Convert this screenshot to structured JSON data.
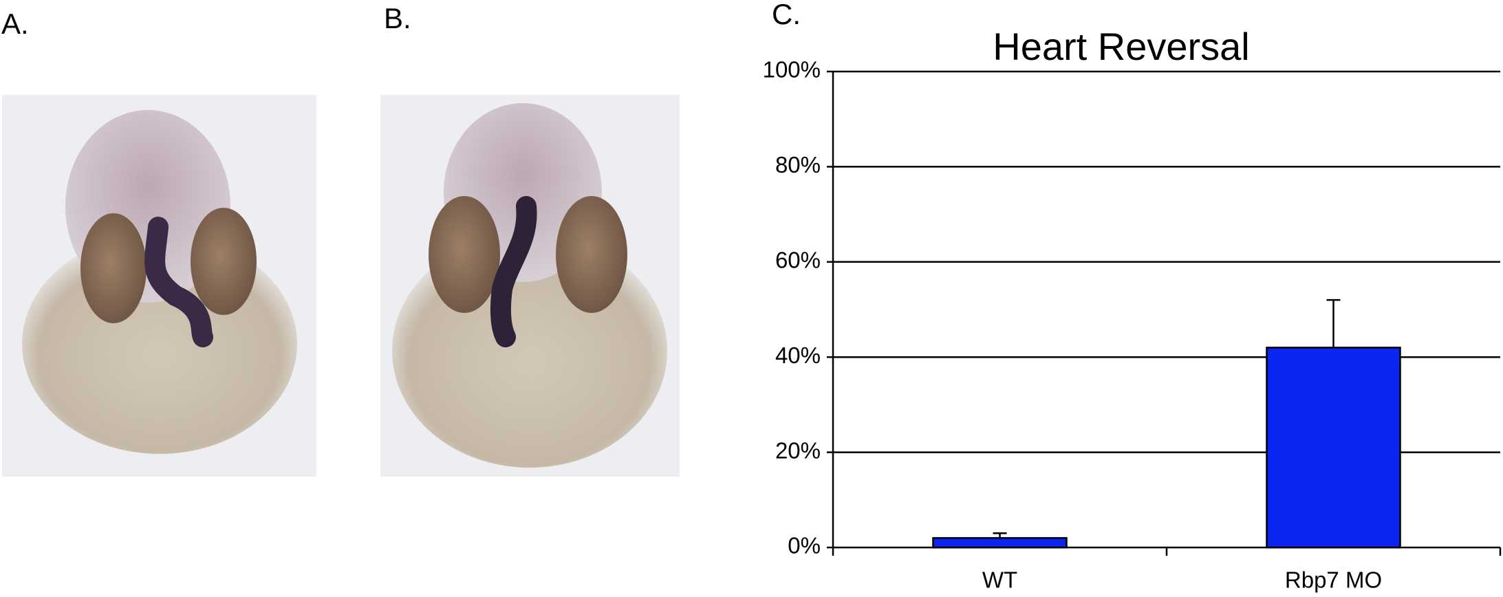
{
  "panel_labels": [
    "A.",
    "B.",
    "C."
  ],
  "chart_data": {
    "type": "bar",
    "title": "Heart Reversal",
    "categories": [
      "WT",
      "Rbp7 MO"
    ],
    "values": [
      2,
      42
    ],
    "errors": [
      1,
      10
    ],
    "color": "#0a26f0",
    "ylim": [
      0,
      100
    ],
    "yticks": [
      {
        "value": 0,
        "label": "0%"
      },
      {
        "value": 20,
        "label": "20%"
      },
      {
        "value": 40,
        "label": "40%"
      },
      {
        "value": 60,
        "label": "60%"
      },
      {
        "value": 80,
        "label": "80%"
      },
      {
        "value": 100,
        "label": "100%"
      }
    ],
    "grid": true
  }
}
